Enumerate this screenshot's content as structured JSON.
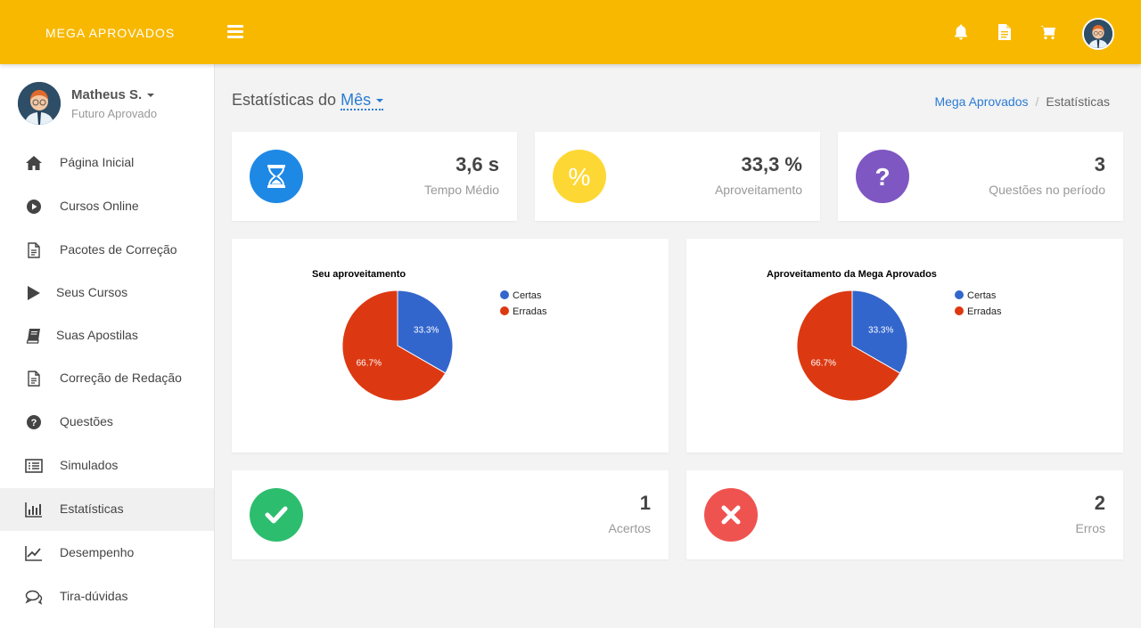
{
  "topbar": {
    "brand": "MEGA APROVADOS",
    "icons": [
      "menu-icon",
      "bell-icon",
      "document-icon",
      "cart-icon",
      "avatar"
    ]
  },
  "user": {
    "name": "Matheus S.",
    "subtitle": "Futuro Aprovado"
  },
  "sidebar": {
    "items": [
      {
        "label": "Página Inicial",
        "icon": "home-icon"
      },
      {
        "label": "Cursos Online",
        "icon": "play-circle-icon"
      },
      {
        "label": "Pacotes de Correção",
        "icon": "document-icon"
      },
      {
        "label": "Seus Cursos",
        "icon": "play-icon"
      },
      {
        "label": "Suas Apostilas",
        "icon": "book-icon"
      },
      {
        "label": "Correção de Redação",
        "icon": "document-icon"
      },
      {
        "label": "Questões",
        "icon": "question-circle-icon"
      },
      {
        "label": "Simulados",
        "icon": "list-icon"
      },
      {
        "label": "Estatísticas",
        "icon": "bar-chart-icon",
        "active": true
      },
      {
        "label": "Desempenho",
        "icon": "line-chart-icon"
      },
      {
        "label": "Tira-dúvidas",
        "icon": "chat-icon"
      }
    ]
  },
  "page": {
    "title_prefix": "Estatísticas do",
    "period": "Mês",
    "breadcrumb": {
      "home": "Mega Aprovados",
      "current": "Estatísticas"
    }
  },
  "stats": {
    "time": {
      "value": "3,6 s",
      "label": "Tempo Médio",
      "color": "#1e88e5",
      "icon": "hourglass-icon"
    },
    "score": {
      "value": "33,3 %",
      "label": "Aproveitamento",
      "color": "#fdd835",
      "icon": "percent-icon"
    },
    "questions": {
      "value": "3",
      "label": "Questões no período",
      "color": "#7e57c2",
      "icon": "question-icon"
    },
    "correct": {
      "value": "1",
      "label": "Acertos",
      "color": "#2dbd6e",
      "icon": "check-icon"
    },
    "wrong": {
      "value": "2",
      "label": "Erros",
      "color": "#ef5350",
      "icon": "close-icon"
    }
  },
  "chart_data": [
    {
      "type": "pie",
      "title": "Seu aproveitamento",
      "categories": [
        "Certas",
        "Erradas"
      ],
      "values": [
        33.3,
        66.7
      ],
      "labels": [
        "33.3%",
        "66.7%"
      ],
      "colors": [
        "#3366cc",
        "#dc3912"
      ],
      "legend": "right"
    },
    {
      "type": "pie",
      "title": "Aproveitamento da Mega Aprovados",
      "categories": [
        "Certas",
        "Erradas"
      ],
      "values": [
        33.3,
        66.7
      ],
      "labels": [
        "33.3%",
        "66.7%"
      ],
      "colors": [
        "#3366cc",
        "#dc3912"
      ],
      "legend": "right"
    }
  ]
}
